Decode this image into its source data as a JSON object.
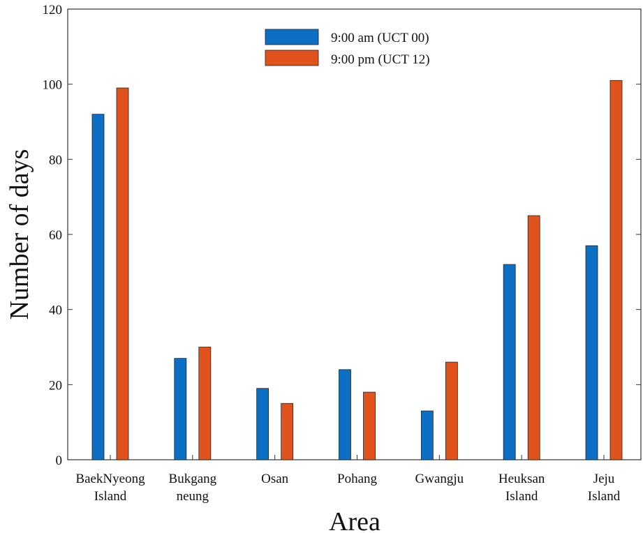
{
  "chart_data": {
    "type": "bar",
    "title": "",
    "xlabel": "Area",
    "ylabel": "Number of days",
    "ylim": [
      0,
      120
    ],
    "yticks": [
      "0",
      "20",
      "40",
      "60",
      "80",
      "100",
      "120"
    ],
    "categories": [
      [
        "BaekNyeong",
        "Island"
      ],
      [
        "Bukgang",
        "neung"
      ],
      [
        "Osan"
      ],
      [
        "Pohang"
      ],
      [
        "Gwangju"
      ],
      [
        "Heuksan",
        "Island"
      ],
      [
        "Jeju",
        "Island"
      ]
    ],
    "series": [
      {
        "name": "9:00 am (UCT 00)",
        "color": "#0C6FC4",
        "values": [
          92,
          27,
          19,
          24,
          13,
          52,
          57
        ]
      },
      {
        "name": "9:00 pm (UCT 12)",
        "color": "#E0531D",
        "values": [
          99,
          30,
          15,
          18,
          26,
          65,
          101
        ]
      }
    ],
    "legend_position": "top-center",
    "grid": false
  }
}
